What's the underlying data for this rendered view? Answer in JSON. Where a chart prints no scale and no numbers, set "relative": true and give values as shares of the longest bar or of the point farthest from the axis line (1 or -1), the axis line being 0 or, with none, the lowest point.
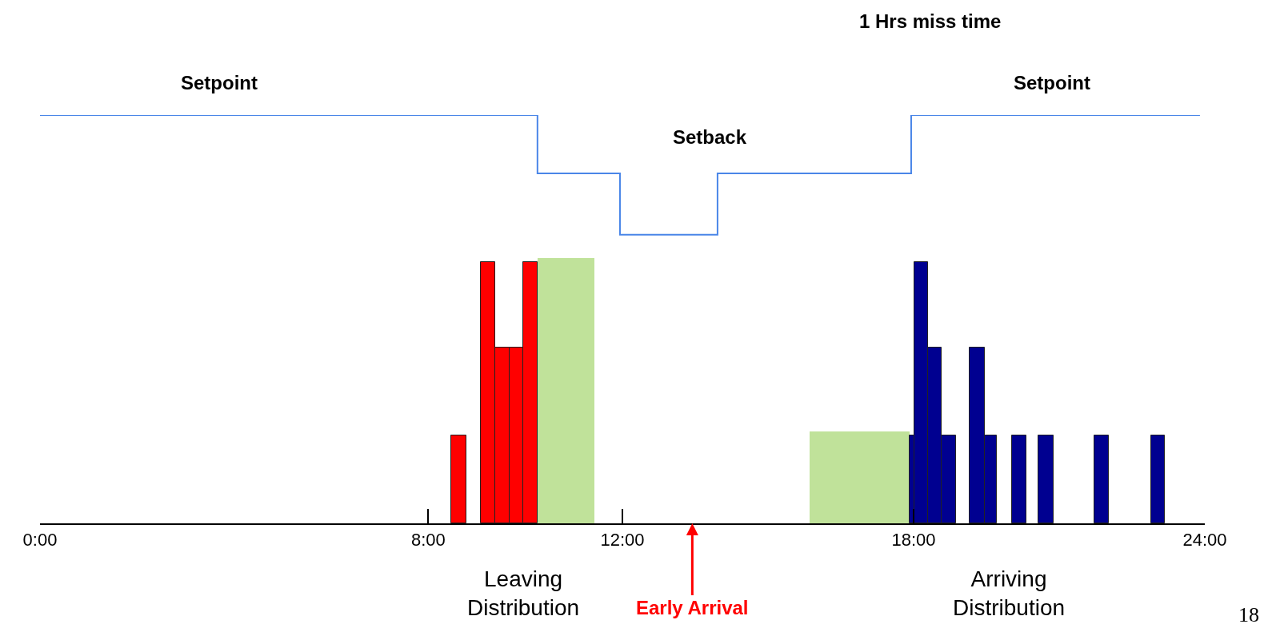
{
  "chart_data": {
    "type": "histogram",
    "relative": true,
    "xlim": [
      0,
      24
    ],
    "xticks": [
      {
        "value": 0,
        "label": "0:00"
      },
      {
        "value": 8,
        "label": "8:00"
      },
      {
        "value": 12,
        "label": "12:00"
      },
      {
        "value": 18,
        "label": "18:00"
      },
      {
        "value": 24,
        "label": "24:00"
      }
    ],
    "series": [
      {
        "type": "step",
        "color": "#4a86e8",
        "x": [
          0,
          10.25,
          11.95,
          13.96,
          17.95,
          23.9
        ],
        "values": [
          1,
          0.857,
          0.707,
          0.857,
          1,
          1
        ]
      },
      {
        "color": "#c0e29a",
        "bins": [
          10.25,
          11.43,
          15.85,
          17.91
        ],
        "values": [
          0.65,
          null,
          0.225
        ]
      },
      {
        "color": "#ff0000",
        "bins": [
          8.48,
          8.78,
          9.08,
          9.38,
          9.67,
          9.95,
          10.25
        ],
        "values": [
          0.215,
          null,
          0.64,
          0.43,
          0.43,
          0.64
        ]
      },
      {
        "color": "#000090",
        "bins": [
          17.91,
          18.02,
          18.29,
          18.58,
          18.87,
          19.16,
          19.46,
          19.72,
          20.03,
          20.32,
          20.57,
          20.88,
          21.72,
          22.02,
          22.89,
          23.18
        ],
        "values": [
          0.215,
          0.64,
          0.43,
          0.215,
          null,
          0.43,
          0.215,
          null,
          0.215,
          null,
          0.215,
          null,
          0.215,
          null,
          0.215
        ]
      }
    ],
    "annotations": [
      "1 Hrs miss time",
      "Setpoint",
      "Setback",
      "Setpoint",
      "Leaving Distribution",
      "Early Arrival",
      "Arriving Distribution",
      "18"
    ]
  }
}
